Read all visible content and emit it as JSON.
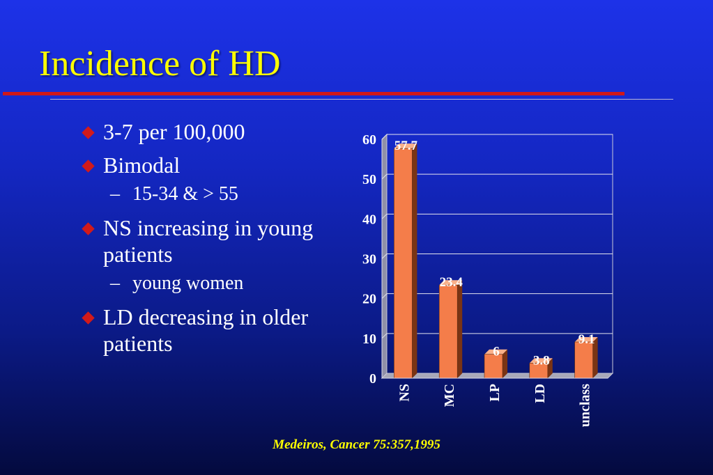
{
  "slide": {
    "title": "Incidence of HD",
    "citation": "Medeiros, Cancer 75:357,1995"
  },
  "bullets": [
    {
      "text": "3-7 per 100,000"
    },
    {
      "text": "Bimodal"
    },
    {
      "text": "15-34 & > 55"
    },
    {
      "text": "NS increasing in young patients"
    },
    {
      "text": "young women"
    },
    {
      "text": "LD decreasing in older patients"
    }
  ],
  "colors": {
    "title": "#ffff00",
    "bar_front": "#f47d4a",
    "bar_side": "#7a3414",
    "bullet_marker": "#d21a1a"
  },
  "chart_data": {
    "type": "bar",
    "categories": [
      "NS",
      "MC",
      "LP",
      "LD",
      "unclass"
    ],
    "values": [
      57.7,
      23.4,
      6,
      3.8,
      9.1
    ],
    "data_labels": [
      "57.7",
      "23.4",
      "6",
      "3.8",
      "9.1"
    ],
    "yticks": [
      "0",
      "10",
      "20",
      "30",
      "40",
      "50",
      "60"
    ],
    "ylim": [
      0,
      60
    ],
    "grid": true,
    "three_d": true
  }
}
